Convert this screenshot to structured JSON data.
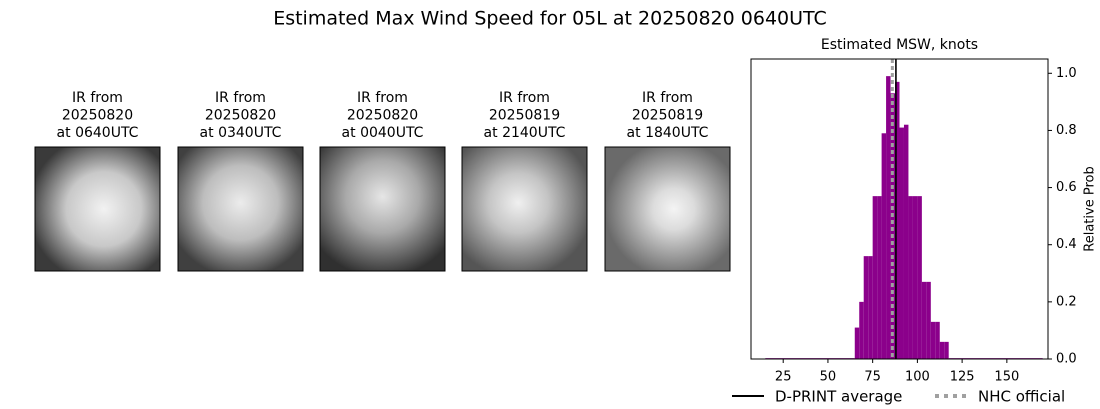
{
  "title": "Estimated Max Wind Speed for 05L at 20250820 0640UTC",
  "panels": [
    {
      "lines": [
        "IR from",
        "20250820",
        "at 0640UTC"
      ]
    },
    {
      "lines": [
        "IR from",
        "20250820",
        "at 0340UTC"
      ]
    },
    {
      "lines": [
        "IR from",
        "20250820",
        "at 0040UTC"
      ]
    },
    {
      "lines": [
        "IR from",
        "20250819",
        "at 2140UTC"
      ]
    },
    {
      "lines": [
        "IR from",
        "20250819",
        "at 1840UTC"
      ]
    }
  ],
  "chart_data": {
    "type": "histogram",
    "title": "Estimated MSW, knots",
    "bins": [
      15,
      65,
      67.5,
      70,
      72.5,
      75,
      77.5,
      80,
      82.5,
      85,
      87.5,
      90,
      92.5,
      95,
      97.5,
      100,
      102.5,
      105,
      107.5,
      110,
      112.5,
      115,
      117.5,
      170
    ],
    "values": [
      0.003,
      0.11,
      0.2,
      0.36,
      0.36,
      0.57,
      0.57,
      0.79,
      0.99,
      0.93,
      0.97,
      0.81,
      0.82,
      0.57,
      0.57,
      0.57,
      0.27,
      0.27,
      0.13,
      0.13,
      0.06,
      0.06,
      0.003
    ],
    "color": "#8b008b",
    "xlim": [
      7,
      173
    ],
    "xticks": [
      25,
      50,
      75,
      100,
      125,
      150
    ],
    "ylim": [
      0,
      1.05
    ],
    "yticks": [
      {
        "value": 0,
        "label": "0.0"
      },
      0.2,
      0.4,
      0.6,
      0.8,
      {
        "value": 1,
        "label": "1.0"
      }
    ],
    "y_label": "Relative Prob",
    "y_axis_side": "right",
    "lines": [
      {
        "name": "D-PRINT average",
        "x": 88,
        "color": "#000000",
        "style": "solid"
      },
      {
        "name": "NHC official",
        "x": 86,
        "color": "#a0a0a0",
        "style": "dotted"
      }
    ],
    "legend": "lower center"
  }
}
